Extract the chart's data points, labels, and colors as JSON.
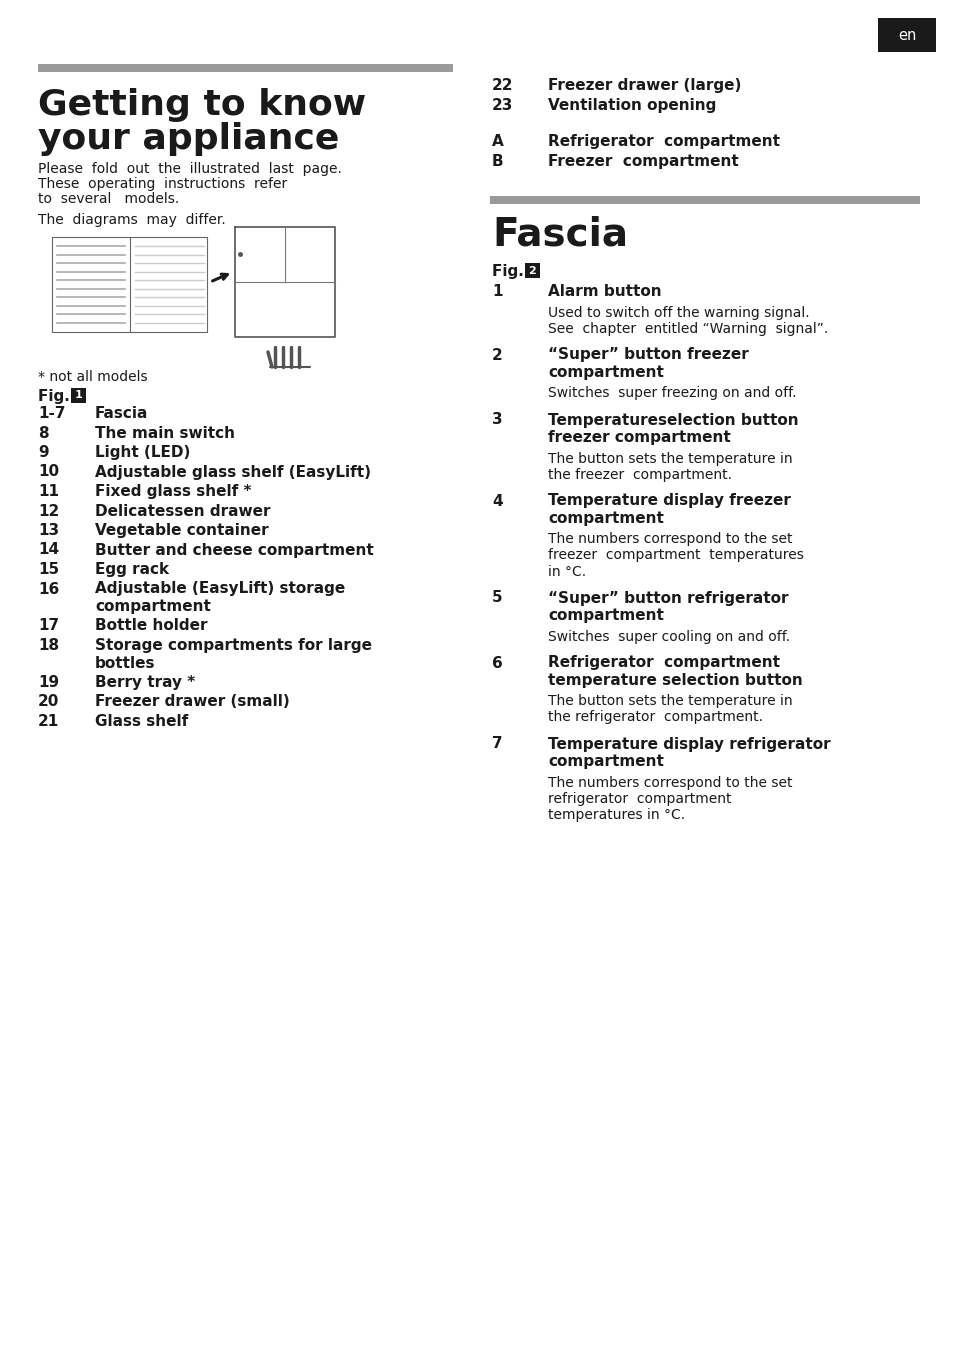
{
  "bg_color": "#ffffff",
  "en_bg": "#1a1a1a",
  "gray_bar_color": "#9a9a9a",
  "left_title_line1": "Getting to know",
  "left_title_line2": "your appliance",
  "fig1_items": [
    [
      "1-7",
      "Fascia",
      false
    ],
    [
      "8",
      "The main switch",
      false
    ],
    [
      "9",
      "Light (LED)",
      false
    ],
    [
      "10",
      "Adjustable glass shelf (EasyLift)",
      false
    ],
    [
      "11",
      "Fixed glass shelf *",
      false
    ],
    [
      "12",
      "Delicatessen drawer",
      false
    ],
    [
      "13",
      "Vegetable container",
      false
    ],
    [
      "14",
      "Butter and cheese compartment",
      false
    ],
    [
      "15",
      "Egg rack",
      false
    ],
    [
      "16",
      "Adjustable (EasyLift) storage\ncompartment",
      false
    ],
    [
      "17",
      "Bottle holder",
      false
    ],
    [
      "18",
      "Storage compartments for large\nbottles",
      false
    ],
    [
      "19",
      "Berry tray *",
      false
    ],
    [
      "20",
      "Freezer drawer (small)",
      false
    ],
    [
      "21",
      "Glass shelf",
      false
    ]
  ],
  "right_top_items": [
    [
      "22",
      "Freezer drawer (large)"
    ],
    [
      "23",
      "Ventilation opening"
    ]
  ],
  "right_ab_items": [
    [
      "A",
      "Refrigerator compartment"
    ],
    [
      "B",
      "Freezer compartment"
    ]
  ],
  "right_title": "Fascia",
  "fig2_items": [
    {
      "num": "1",
      "heading": "Alarm button",
      "body": "Used to switch off the warning signal.\nSee  chapter  entitled “Warning  signal”."
    },
    {
      "num": "2",
      "heading": "“Super” button freezer\ncompartment",
      "body": "Switches  super freezing on and off."
    },
    {
      "num": "3",
      "heading": "Temperatureselection button\nfreezer compartment",
      "body": "The button sets the temperature in\nthe freezer  compartment."
    },
    {
      "num": "4",
      "heading": "Temperature display freezer\ncompartment",
      "body": "The numbers correspond to the set\nfreezer  compartment  temperatures\nin °C."
    },
    {
      "num": "5",
      "heading": "“Super” button refrigerator\ncompartment",
      "body": "Switches  super cooling on and off."
    },
    {
      "num": "6",
      "heading": "Refrigerator  compartment\ntemperature selection button",
      "body": "The button sets the temperature in\nthe refrigerator  compartment."
    },
    {
      "num": "7",
      "heading": "Temperature display refrigerator\ncompartment",
      "body": "The numbers correspond to the set\nrefrigerator  compartment\ntemperatures in °C."
    }
  ]
}
